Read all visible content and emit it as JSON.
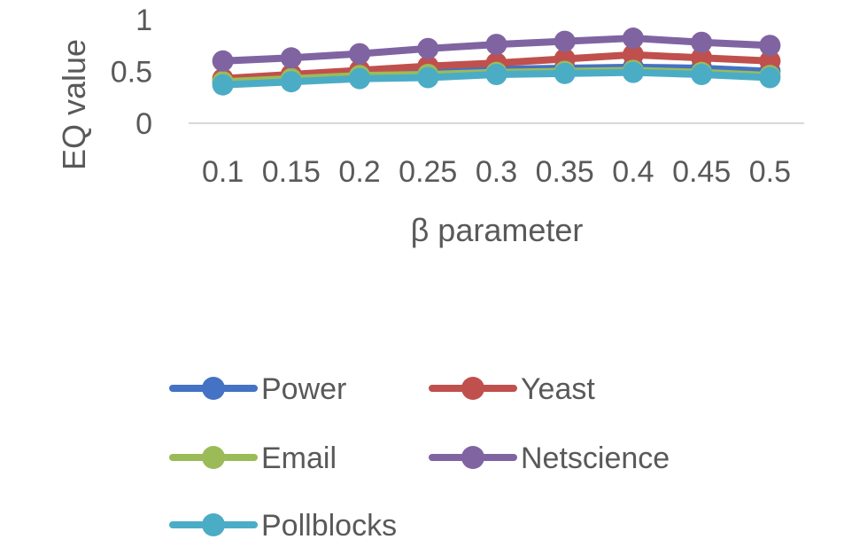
{
  "chart_data": {
    "type": "line",
    "title": "",
    "xlabel": "β parameter",
    "ylabel": "EQ value",
    "ylim": [
      0,
      1
    ],
    "yticks": [
      "0",
      "0.5",
      "1"
    ],
    "categories": [
      "0.1",
      "0.15",
      "0.2",
      "0.25",
      "0.3",
      "0.35",
      "0.4",
      "0.45",
      "0.5"
    ],
    "grid": false,
    "legend_position": "bottom",
    "series": [
      {
        "name": "Power",
        "color": "#4472C4",
        "values": [
          0.4,
          0.44,
          0.48,
          0.5,
          0.52,
          0.53,
          0.54,
          0.53,
          0.5
        ]
      },
      {
        "name": "Yeast",
        "color": "#C0504D",
        "values": [
          0.43,
          0.47,
          0.51,
          0.55,
          0.58,
          0.62,
          0.66,
          0.63,
          0.6
        ]
      },
      {
        "name": "Email",
        "color": "#9BBB59",
        "values": [
          0.4,
          0.43,
          0.46,
          0.47,
          0.49,
          0.5,
          0.51,
          0.49,
          0.46
        ]
      },
      {
        "name": "Netscience",
        "color": "#8064A2",
        "values": [
          0.6,
          0.63,
          0.67,
          0.72,
          0.76,
          0.79,
          0.82,
          0.78,
          0.75
        ]
      },
      {
        "name": "Pollblocks",
        "color": "#4BACC6",
        "values": [
          0.37,
          0.4,
          0.43,
          0.44,
          0.47,
          0.48,
          0.49,
          0.47,
          0.44
        ]
      }
    ]
  }
}
